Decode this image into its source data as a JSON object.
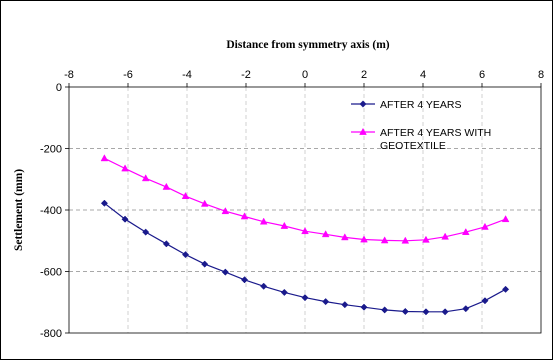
{
  "chart_data": {
    "type": "line",
    "xlabel": "Distance from symmetry axis (m)",
    "ylabel": "Settlement (mm)",
    "xlim": [
      -8,
      8
    ],
    "ylim": [
      -800,
      0
    ],
    "x_ticks": [
      "-8",
      "-6",
      "-4",
      "-2",
      "0",
      "2",
      "4",
      "6",
      "8"
    ],
    "y_ticks": [
      "0",
      "-200",
      "-400",
      "-600",
      "-800"
    ],
    "x_tick_values": [
      -8,
      -6,
      -4,
      -2,
      0,
      2,
      4,
      6,
      8
    ],
    "y_tick_values": [
      0,
      -200,
      -400,
      -600,
      -800
    ],
    "x_axis_position": "top",
    "grid": "horizontal dashed",
    "legend_position": "top-right",
    "series": [
      {
        "name": "AFTER 4 YEARS",
        "color": "#1a1a8c",
        "marker": "diamond",
        "x": [
          -6.8,
          -6.1,
          -5.4,
          -4.7,
          -4.05,
          -3.4,
          -2.7,
          -2.05,
          -1.4,
          -0.7,
          0,
          0.7,
          1.35,
          2.0,
          2.7,
          3.4,
          4.1,
          4.75,
          5.45,
          6.1,
          6.8
        ],
        "y": [
          -378,
          -430,
          -472,
          -510,
          -545,
          -576,
          -602,
          -627,
          -648,
          -668,
          -685,
          -698,
          -708,
          -716,
          -725,
          -730,
          -731,
          -731,
          -721,
          -695,
          -658
        ]
      },
      {
        "name": "AFTER 4 YEARS WITH GEOTEXTILE",
        "color": "#ff00ff",
        "marker": "triangle",
        "x": [
          -6.8,
          -6.1,
          -5.4,
          -4.7,
          -4.05,
          -3.4,
          -2.7,
          -2.05,
          -1.4,
          -0.7,
          0,
          0.7,
          1.35,
          2.0,
          2.7,
          3.4,
          4.1,
          4.75,
          5.45,
          6.1,
          6.8
        ],
        "y": [
          -232,
          -265,
          -297,
          -325,
          -355,
          -380,
          -404,
          -421,
          -438,
          -452,
          -469,
          -479,
          -489,
          -496,
          -499,
          -500,
          -497,
          -487,
          -472,
          -455,
          -430
        ]
      }
    ],
    "legend_labels": [
      {
        "lines": [
          "AFTER 4 YEARS"
        ]
      },
      {
        "lines": [
          "AFTER 4 YEARS WITH",
          "GEOTEXTILE"
        ]
      }
    ]
  }
}
